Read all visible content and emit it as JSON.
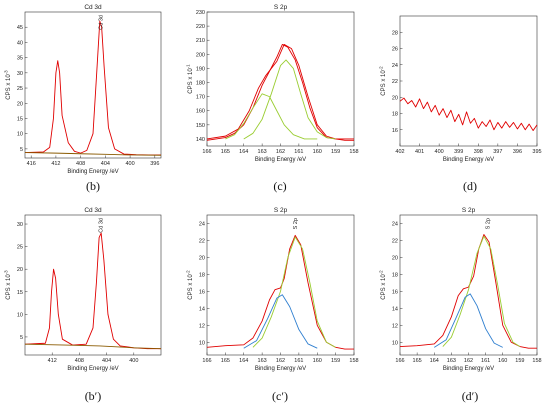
{
  "chart_data": [
    {
      "type": "line",
      "caption": "(b)",
      "title": "Cd 3d",
      "peak_label": "Cd 3d",
      "peak_x": 404.8,
      "xlabel": "Binding Energy /eV",
      "ylabel": "CPS x 10",
      "ylabel_exp": "-3",
      "xlim": [
        417,
        395
      ],
      "ylim": [
        2,
        50
      ],
      "xticks": [
        416,
        412,
        408,
        404,
        400,
        396
      ],
      "yticks": [
        5,
        10,
        15,
        20,
        25,
        30,
        35,
        40,
        45
      ],
      "series": [
        {
          "color": "#e00000",
          "points": [
            [
              417,
              3.8
            ],
            [
              414,
              4.0
            ],
            [
              413,
              5.5
            ],
            [
              412.4,
              15
            ],
            [
              412,
              30
            ],
            [
              411.7,
              34
            ],
            [
              411.4,
              30
            ],
            [
              411,
              16
            ],
            [
              410,
              7
            ],
            [
              409,
              4.2
            ],
            [
              408,
              3.6
            ],
            [
              407,
              4.5
            ],
            [
              406,
              10
            ],
            [
              405.4,
              30
            ],
            [
              404.9,
              47
            ],
            [
              404.6,
              45
            ],
            [
              404.2,
              32
            ],
            [
              403.5,
              12
            ],
            [
              402.5,
              5
            ],
            [
              401,
              3.3
            ],
            [
              399,
              3.1
            ],
            [
              397,
              3.0
            ],
            [
              395,
              3.0
            ]
          ]
        },
        {
          "color": "#8a5a00",
          "points": [
            [
              417,
              3.8
            ],
            [
              412,
              3.6
            ],
            [
              408,
              3.4
            ],
            [
              404,
              3.2
            ],
            [
              400,
              3.0
            ],
            [
              395,
              2.9
            ]
          ]
        }
      ]
    },
    {
      "type": "line",
      "caption": "(c)",
      "title": "S 2p",
      "peak_label": "",
      "peak_x": null,
      "xlabel": "Binding Energy /eV",
      "ylabel": "CPS x 10",
      "ylabel_exp": "-1",
      "xlim": [
        166,
        158
      ],
      "ylim": [
        135,
        230
      ],
      "xticks": [
        166,
        165,
        164,
        163,
        162,
        161,
        160,
        159,
        158
      ],
      "yticks": [
        140,
        150,
        160,
        170,
        180,
        190,
        200,
        210,
        220,
        230
      ],
      "series": [
        {
          "color": "#e00000",
          "points": [
            [
              166,
              139
            ],
            [
              165.5,
              140
            ],
            [
              165,
              141
            ],
            [
              164.5,
              144
            ],
            [
              164,
              150
            ],
            [
              163.5,
              162
            ],
            [
              163,
              178
            ],
            [
              162.6,
              188
            ],
            [
              162.2,
              198
            ],
            [
              161.9,
              207
            ],
            [
              161.6,
              205
            ],
            [
              161.2,
              196
            ],
            [
              160.8,
              180
            ],
            [
              160.4,
              162
            ],
            [
              160,
              148
            ],
            [
              159.5,
              141
            ],
            [
              159,
              140
            ],
            [
              158.5,
              139
            ],
            [
              158,
              139
            ]
          ]
        },
        {
          "color": "#e00000",
          "points": [
            [
              166,
              140
            ],
            [
              165,
              142
            ],
            [
              164.3,
              147
            ],
            [
              163.7,
              160
            ],
            [
              163.2,
              176
            ],
            [
              162.8,
              185
            ],
            [
              162.5,
              190
            ],
            [
              162.2,
              195
            ],
            [
              161.8,
              207
            ],
            [
              161.4,
              204
            ],
            [
              161,
              192
            ],
            [
              160.5,
              170
            ],
            [
              160,
              150
            ],
            [
              159.5,
              142
            ],
            [
              159,
              140
            ],
            [
              158,
              140
            ]
          ]
        },
        {
          "color": "#9acd32",
          "points": [
            [
              165,
              140
            ],
            [
              164.5,
              143
            ],
            [
              164,
              151
            ],
            [
              163.5,
              162
            ],
            [
              163,
              172
            ],
            [
              162.6,
              170
            ],
            [
              162.2,
              160
            ],
            [
              161.8,
              150
            ],
            [
              161.3,
              143
            ],
            [
              160.7,
              140
            ],
            [
              160,
              140
            ]
          ]
        },
        {
          "color": "#9acd32",
          "points": [
            [
              164,
              140
            ],
            [
              163.5,
              144
            ],
            [
              163,
              154
            ],
            [
              162.5,
              172
            ],
            [
              162,
              192
            ],
            [
              161.7,
              196
            ],
            [
              161.3,
              190
            ],
            [
              160.9,
              172
            ],
            [
              160.5,
              155
            ],
            [
              160,
              145
            ],
            [
              159.5,
              141
            ],
            [
              159,
              140
            ]
          ]
        }
      ]
    },
    {
      "type": "line",
      "caption": "(d)",
      "title": "",
      "peak_label": "",
      "peak_x": null,
      "xlabel": "Binding Energy /eV",
      "ylabel": "CPS x 10",
      "ylabel_exp": "-2",
      "xlim": [
        402,
        395
      ],
      "ylim": [
        14,
        30
      ],
      "xticks": [
        402,
        401,
        400,
        399,
        398,
        397,
        396,
        395
      ],
      "yticks": [
        16,
        18,
        20,
        22,
        24,
        26,
        28
      ],
      "series": [
        {
          "color": "#e00000",
          "points": [
            [
              402,
              19.5
            ],
            [
              401.8,
              19.9
            ],
            [
              401.6,
              19.2
            ],
            [
              401.4,
              19.6
            ],
            [
              401.2,
              18.8
            ],
            [
              401,
              19.8
            ],
            [
              400.8,
              18.6
            ],
            [
              400.6,
              19.4
            ],
            [
              400.4,
              18.2
            ],
            [
              400.2,
              19.0
            ],
            [
              400,
              17.8
            ],
            [
              399.8,
              18.6
            ],
            [
              399.6,
              17.5
            ],
            [
              399.4,
              18.4
            ],
            [
              399.2,
              17.0
            ],
            [
              399,
              17.9
            ],
            [
              398.8,
              16.6
            ],
            [
              398.6,
              18.2
            ],
            [
              398.4,
              16.8
            ],
            [
              398.2,
              17.4
            ],
            [
              398,
              16.2
            ],
            [
              397.8,
              17.0
            ],
            [
              397.6,
              16.4
            ],
            [
              397.4,
              17.2
            ],
            [
              397.2,
              16.0
            ],
            [
              397,
              16.9
            ],
            [
              396.8,
              16.2
            ],
            [
              396.6,
              17.0
            ],
            [
              396.4,
              16.3
            ],
            [
              396.2,
              16.9
            ],
            [
              396,
              16.1
            ],
            [
              395.8,
              16.8
            ],
            [
              395.6,
              16.0
            ],
            [
              395.4,
              16.7
            ],
            [
              395.2,
              15.9
            ],
            [
              395,
              16.6
            ]
          ]
        }
      ]
    },
    {
      "type": "line",
      "caption": "(b′)",
      "title": "Cd 3d",
      "peak_label": "Cd 3d",
      "peak_x": 404.9,
      "xlabel": "Binding Energy /eV",
      "ylabel": "CPS x 10",
      "ylabel_exp": "-3",
      "xlim": [
        416,
        396
      ],
      "ylim": [
        1,
        32
      ],
      "xticks": [
        412,
        408,
        404,
        400
      ],
      "yticks": [
        5,
        10,
        15,
        20,
        25,
        30
      ],
      "series": [
        {
          "color": "#e00000",
          "points": [
            [
              416,
              3.4
            ],
            [
              413,
              3.6
            ],
            [
              412.4,
              7
            ],
            [
              412.1,
              15
            ],
            [
              411.8,
              20
            ],
            [
              411.5,
              18
            ],
            [
              411.1,
              10
            ],
            [
              410.5,
              4.5
            ],
            [
              409,
              3.2
            ],
            [
              407,
              3.4
            ],
            [
              406,
              7
            ],
            [
              405.5,
              17
            ],
            [
              405.1,
              27
            ],
            [
              404.8,
              28
            ],
            [
              404.4,
              22
            ],
            [
              403.8,
              10
            ],
            [
              403,
              4.5
            ],
            [
              402,
              3.0
            ],
            [
              400,
              2.6
            ],
            [
              398,
              2.4
            ],
            [
              396,
              2.4
            ]
          ]
        },
        {
          "color": "#8a5a00",
          "points": [
            [
              416,
              3.4
            ],
            [
              410,
              3.2
            ],
            [
              405,
              3.0
            ],
            [
              400,
              2.6
            ],
            [
              396,
              2.4
            ]
          ]
        }
      ]
    },
    {
      "type": "line",
      "caption": "(c′)",
      "title": "S 2p",
      "peak_label": "S 2p",
      "peak_x": 161.2,
      "xlabel": "Binding Energy /eV",
      "ylabel": "CPS x 10",
      "ylabel_exp": "-2",
      "xlim": [
        166,
        158
      ],
      "ylim": [
        8.5,
        25
      ],
      "xticks": [
        166,
        165,
        164,
        163,
        162,
        161,
        160,
        159,
        158
      ],
      "yticks": [
        10,
        12,
        14,
        16,
        18,
        20,
        22,
        24
      ],
      "series": [
        {
          "color": "#e00000",
          "points": [
            [
              166,
              9.4
            ],
            [
              165,
              9.6
            ],
            [
              164,
              9.7
            ],
            [
              163.5,
              10.5
            ],
            [
              163,
              12.5
            ],
            [
              162.6,
              15
            ],
            [
              162.3,
              16.2
            ],
            [
              162,
              16.4
            ],
            [
              161.8,
              17.5
            ],
            [
              161.5,
              21
            ],
            [
              161.2,
              22.6
            ],
            [
              160.9,
              21.5
            ],
            [
              160.5,
              17
            ],
            [
              160,
              12
            ],
            [
              159.5,
              10
            ],
            [
              159,
              9.4
            ],
            [
              158.5,
              9.2
            ],
            [
              158,
              9.2
            ]
          ]
        },
        {
          "color": "#9acd32",
          "points": [
            [
              163.5,
              9.4
            ],
            [
              163,
              10.5
            ],
            [
              162.5,
              13
            ],
            [
              162,
              16
            ],
            [
              161.6,
              20
            ],
            [
              161.2,
              22.4
            ],
            [
              160.8,
              21
            ],
            [
              160.4,
              17
            ],
            [
              160,
              12.5
            ],
            [
              159.5,
              10
            ],
            [
              159,
              9.4
            ]
          ]
        },
        {
          "color": "#2f7fd0",
          "points": [
            [
              164,
              9.3
            ],
            [
              163.3,
              10.2
            ],
            [
              162.7,
              12.8
            ],
            [
              162.2,
              15.2
            ],
            [
              161.9,
              15.6
            ],
            [
              161.5,
              14.2
            ],
            [
              161,
              11.5
            ],
            [
              160.5,
              9.8
            ],
            [
              160,
              9.3
            ]
          ]
        }
      ]
    },
    {
      "type": "line",
      "caption": "(d′)",
      "title": "S 2p",
      "peak_label": "S 2p",
      "peak_x": 160.9,
      "xlabel": "Binding Energy /eV",
      "ylabel": "CPS x 10",
      "ylabel_exp": "-2",
      "xlim": [
        166,
        158
      ],
      "ylim": [
        8.5,
        25
      ],
      "xticks": [
        166,
        165,
        164,
        163,
        162,
        161,
        160,
        159,
        158
      ],
      "yticks": [
        10,
        12,
        14,
        16,
        18,
        20,
        22,
        24
      ],
      "series": [
        {
          "color": "#e00000",
          "points": [
            [
              166,
              9.5
            ],
            [
              165,
              9.6
            ],
            [
              164,
              9.8
            ],
            [
              163.5,
              10.8
            ],
            [
              163,
              13
            ],
            [
              162.6,
              15.5
            ],
            [
              162.3,
              16.3
            ],
            [
              162,
              16.5
            ],
            [
              161.7,
              17.8
            ],
            [
              161.4,
              21
            ],
            [
              161.1,
              22.7
            ],
            [
              160.8,
              21.8
            ],
            [
              160.4,
              17
            ],
            [
              160,
              12
            ],
            [
              159.5,
              10
            ],
            [
              159,
              9.5
            ],
            [
              158.5,
              9.3
            ],
            [
              158,
              9.3
            ]
          ]
        },
        {
          "color": "#9acd32",
          "points": [
            [
              163.5,
              9.5
            ],
            [
              163,
              10.6
            ],
            [
              162.5,
              13.2
            ],
            [
              162,
              16.2
            ],
            [
              161.5,
              20.5
            ],
            [
              161.1,
              22.5
            ],
            [
              160.7,
              21
            ],
            [
              160.3,
              16.8
            ],
            [
              159.9,
              12.2
            ],
            [
              159.4,
              10
            ],
            [
              159,
              9.5
            ]
          ]
        },
        {
          "color": "#2f7fd0",
          "points": [
            [
              164,
              9.4
            ],
            [
              163.3,
              10.3
            ],
            [
              162.7,
              13
            ],
            [
              162.2,
              15.3
            ],
            [
              161.9,
              15.7
            ],
            [
              161.5,
              14.3
            ],
            [
              161,
              11.6
            ],
            [
              160.5,
              9.9
            ],
            [
              160,
              9.4
            ]
          ]
        }
      ]
    }
  ]
}
